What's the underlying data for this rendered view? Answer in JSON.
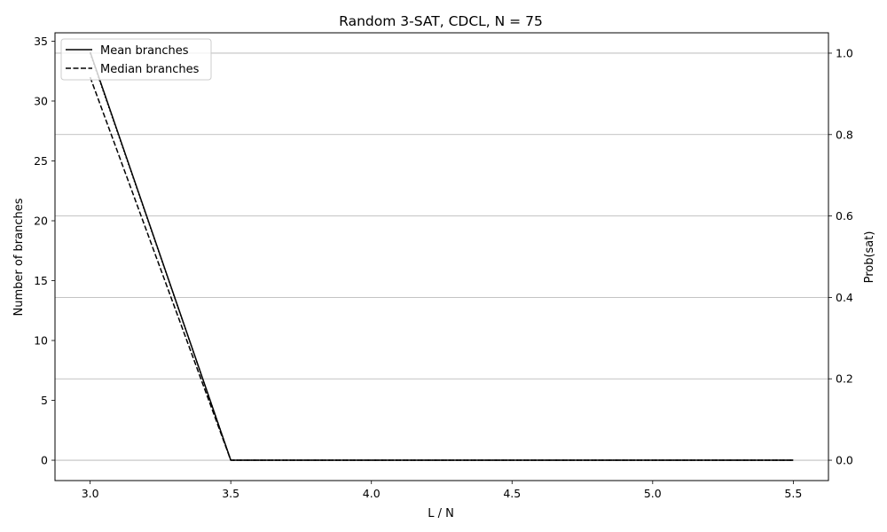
{
  "chart_data": {
    "type": "line",
    "title": "Random 3-SAT, CDCL, N = 75",
    "xlabel": "L / N",
    "ylabel": "Number of branches",
    "y2label": "Prob(sat)",
    "xlim": [
      2.875,
      5.625
    ],
    "ylim": [
      -1.7,
      35.7
    ],
    "y2lim": [
      -0.05,
      1.05
    ],
    "xticks": [
      3.0,
      3.5,
      4.0,
      4.5,
      5.0,
      5.5
    ],
    "xtick_labels": [
      "3.0",
      "3.5",
      "4.0",
      "4.5",
      "5.0",
      "5.5"
    ],
    "yticks": [
      0,
      5,
      10,
      15,
      20,
      25,
      30,
      35
    ],
    "ytick_labels": [
      "0",
      "5",
      "10",
      "15",
      "20",
      "25",
      "30",
      "35"
    ],
    "y2ticks": [
      0.0,
      0.2,
      0.4,
      0.6,
      0.8,
      1.0
    ],
    "y2tick_labels": [
      "0.0",
      "0.2",
      "0.4",
      "0.6",
      "0.8",
      "1.0"
    ],
    "grid": "right-axis horizontal",
    "legend_position": "upper-left",
    "x": [
      3.0,
      3.5,
      4.0,
      4.5,
      5.0,
      5.5
    ],
    "series": [
      {
        "name": "Mean branches",
        "axis": "left",
        "style": "solid",
        "color": "#000000",
        "values": [
          34.1,
          0,
          0,
          0,
          0,
          0
        ]
      },
      {
        "name": "Median branches",
        "axis": "left",
        "style": "dashed",
        "color": "#000000",
        "values": [
          32.0,
          0,
          0,
          0,
          0,
          0
        ]
      },
      {
        "axis": "right",
        "style": "dotted",
        "color": "#000000",
        "values": [
          1.0,
          0.0,
          0.0,
          0.0,
          0.0,
          0.0
        ]
      }
    ]
  }
}
